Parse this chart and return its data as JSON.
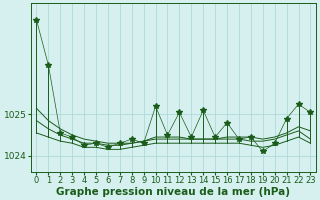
{
  "xlabel": "Graphe pression niveau de la mer (hPa)",
  "x": [
    0,
    1,
    2,
    3,
    4,
    5,
    6,
    7,
    8,
    9,
    10,
    11,
    12,
    13,
    14,
    15,
    16,
    17,
    18,
    19,
    20,
    21,
    22,
    23
  ],
  "spiky": [
    1027.3,
    1026.2,
    1024.55,
    1024.45,
    1024.25,
    1024.3,
    1024.2,
    1024.3,
    1024.4,
    1024.3,
    1025.2,
    1024.5,
    1025.05,
    1024.45,
    1025.1,
    1024.45,
    1024.8,
    1024.4,
    1024.45,
    1024.1,
    1024.3,
    1024.9,
    1025.25,
    1025.05
  ],
  "smooth1": [
    1025.15,
    1024.85,
    1024.65,
    1024.5,
    1024.4,
    1024.35,
    1024.3,
    1024.3,
    1024.3,
    1024.35,
    1024.45,
    1024.45,
    1024.45,
    1024.4,
    1024.4,
    1024.4,
    1024.45,
    1024.45,
    1024.45,
    1024.4,
    1024.45,
    1024.55,
    1024.7,
    1024.6
  ],
  "smooth2": [
    1024.85,
    1024.65,
    1024.5,
    1024.4,
    1024.3,
    1024.3,
    1024.25,
    1024.25,
    1024.3,
    1024.35,
    1024.4,
    1024.4,
    1024.4,
    1024.4,
    1024.4,
    1024.4,
    1024.4,
    1024.4,
    1024.35,
    1024.35,
    1024.4,
    1024.5,
    1024.6,
    1024.4
  ],
  "smooth3": [
    1024.55,
    1024.45,
    1024.35,
    1024.3,
    1024.2,
    1024.2,
    1024.15,
    1024.15,
    1024.2,
    1024.25,
    1024.3,
    1024.3,
    1024.3,
    1024.3,
    1024.3,
    1024.3,
    1024.3,
    1024.3,
    1024.25,
    1024.2,
    1024.25,
    1024.35,
    1024.45,
    1024.3
  ],
  "bg_color": "#d6f0f0",
  "line_color": "#1a5c1a",
  "grid_color": "#b0dada",
  "ylim_min": 1023.6,
  "ylim_max": 1027.7,
  "yticks": [
    1024,
    1025
  ],
  "tick_fontsize": 6.0,
  "label_fontsize": 7.5
}
